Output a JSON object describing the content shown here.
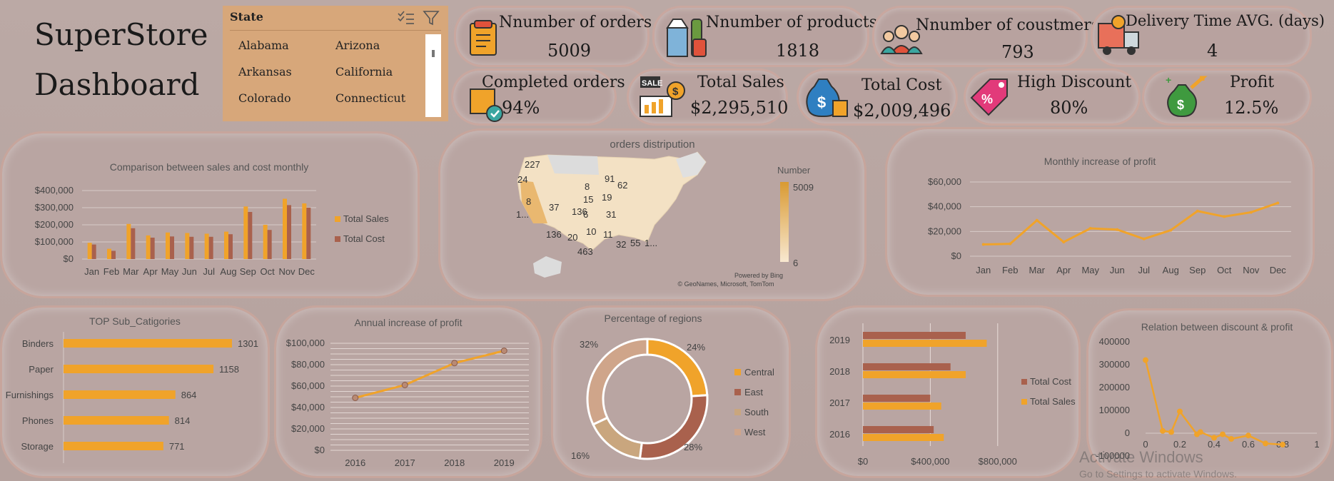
{
  "header": {
    "title_line1": "SuperStore",
    "title_line2": "Dashboard"
  },
  "slicer": {
    "title": "State",
    "items": [
      "Alabama",
      "Arizona",
      "Arkansas",
      "California",
      "Colorado",
      "Connecticut"
    ]
  },
  "kpis": [
    {
      "label": "Nnumber of orders",
      "value": "5009",
      "icon": "clipboard-icon"
    },
    {
      "label": "Nnumber of products",
      "value": "1818",
      "icon": "milk-bottle-icon"
    },
    {
      "label": "Nnumber of coustmers",
      "value": "793",
      "icon": "customers-icon"
    },
    {
      "label": "Delivery Time AVG. (days)",
      "value": "4",
      "icon": "delivery-truck-icon"
    },
    {
      "label": "Completed orders",
      "value": "94%",
      "icon": "package-check-icon"
    },
    {
      "label": "Total Sales",
      "value": "$2,295,510",
      "icon": "sale-chart-icon"
    },
    {
      "label": "Total Cost",
      "value": "$2,009,496",
      "icon": "money-bag-icon"
    },
    {
      "label": "High Discount",
      "value": "80%",
      "icon": "discount-tag-icon"
    },
    {
      "label": "Profit",
      "value": "12.5%",
      "icon": "profit-bag-icon"
    }
  ],
  "colors": {
    "sales": "#f0a32a",
    "cost": "#a9614d",
    "south": "#c9a67e",
    "central": "#f0a32a",
    "east": "#a9614d",
    "west": "#cfa58a"
  },
  "watermark": {
    "line1": "Activate Windows",
    "line2": "Go to Settings to activate Windows."
  },
  "chart_data": [
    {
      "id": "monthly",
      "type": "bar",
      "title": "Comparison between sales and cost monthly",
      "categories": [
        "Jan",
        "Feb",
        "Mar",
        "Apr",
        "May",
        "Jun",
        "Jul",
        "Aug",
        "Sep",
        "Oct",
        "Nov",
        "Dec"
      ],
      "series": [
        {
          "name": "Total Sales",
          "values": [
            95000,
            60000,
            205000,
            138000,
            155000,
            152000,
            148000,
            160000,
            307000,
            200000,
            352000,
            325000
          ]
        },
        {
          "name": "Total Cost",
          "values": [
            85000,
            48000,
            180000,
            125000,
            132000,
            130000,
            130000,
            145000,
            275000,
            170000,
            315000,
            300000
          ]
        }
      ],
      "yticks": [
        "$0",
        "$100,000",
        "$200,000",
        "$300,000",
        "$400,000"
      ],
      "ylim": [
        0,
        400000
      ],
      "legend": "right"
    },
    {
      "id": "map",
      "type": "map",
      "title": "orders distripution",
      "legend_title": "Number",
      "legend_max": "5009",
      "legend_min": "6",
      "labels": [
        "227",
        "24",
        "8",
        "91",
        "62",
        "15",
        "19",
        "8",
        "37",
        "136",
        "6",
        "31",
        "1...",
        "136",
        "20",
        "10",
        "11",
        "463",
        "32",
        "55",
        "1..."
      ],
      "credit1": "Powered by Bing",
      "credit2": "© GeoNames, Microsoft, TomTom"
    },
    {
      "id": "monthlyprofit",
      "type": "line",
      "title": "Monthly increase of profit",
      "categories": [
        "Jan",
        "Feb",
        "Mar",
        "Apr",
        "May",
        "Jun",
        "Jul",
        "Aug",
        "Sep",
        "Oct",
        "Nov",
        "Dec"
      ],
      "values": [
        9500,
        10000,
        29000,
        11500,
        22500,
        21500,
        14000,
        21000,
        36500,
        32000,
        35500,
        43000
      ],
      "yticks": [
        "$0",
        "$20,000",
        "$40,000",
        "$60,000"
      ],
      "ylim": [
        0,
        60000
      ]
    },
    {
      "id": "subcat",
      "type": "bar",
      "orientation": "horizontal",
      "title": "TOP Sub_Catigories",
      "categories": [
        "Binders",
        "Paper",
        "Furnishings",
        "Phones",
        "Storage"
      ],
      "values": [
        1301,
        1158,
        864,
        814,
        771
      ]
    },
    {
      "id": "annual",
      "type": "line",
      "title": "Annual increase of profit",
      "categories": [
        "2016",
        "2017",
        "2018",
        "2019"
      ],
      "values": [
        49000,
        61000,
        81500,
        93000
      ],
      "yticks": [
        "$0",
        "$20,000",
        "$40,000",
        "$60,000",
        "$80,000",
        "$100,000"
      ],
      "ylim": [
        0,
        100000
      ]
    },
    {
      "id": "regions",
      "type": "pie",
      "title": "Percentage of regions",
      "categories": [
        "Central",
        "East",
        "South",
        "West"
      ],
      "values": [
        24,
        28,
        16,
        32
      ],
      "labels": [
        "24%",
        "28%",
        "16%",
        "32%"
      ]
    },
    {
      "id": "yearly",
      "type": "bar",
      "orientation": "horizontal",
      "categories": [
        "2016",
        "2017",
        "2018",
        "2019"
      ],
      "series": [
        {
          "name": "Total Cost",
          "values": [
            420000,
            400000,
            520000,
            610000
          ]
        },
        {
          "name": "Total Sales",
          "values": [
            480000,
            465000,
            610000,
            735000
          ]
        }
      ],
      "xticks": [
        "$0",
        "$400,000",
        "$800,000"
      ],
      "xlim": [
        0,
        1000000
      ]
    },
    {
      "id": "discount",
      "type": "scatter",
      "title": "Relation between discount & profit",
      "x": [
        0,
        0.1,
        0.15,
        0.2,
        0.3,
        0.32,
        0.4,
        0.45,
        0.5,
        0.6,
        0.7,
        0.8
      ],
      "y": [
        320000,
        10000,
        5000,
        95000,
        -5000,
        5000,
        -20000,
        -5000,
        -25000,
        -10000,
        -45000,
        -50000
      ],
      "xticks": [
        "0",
        "0.2",
        "0.4",
        "0.6",
        "0.8",
        "1"
      ],
      "yticks": [
        "400000",
        "300000",
        "200000",
        "100000",
        "0",
        "-100000"
      ],
      "xlim": [
        0,
        1
      ],
      "ylim": [
        -100000,
        400000
      ]
    }
  ]
}
